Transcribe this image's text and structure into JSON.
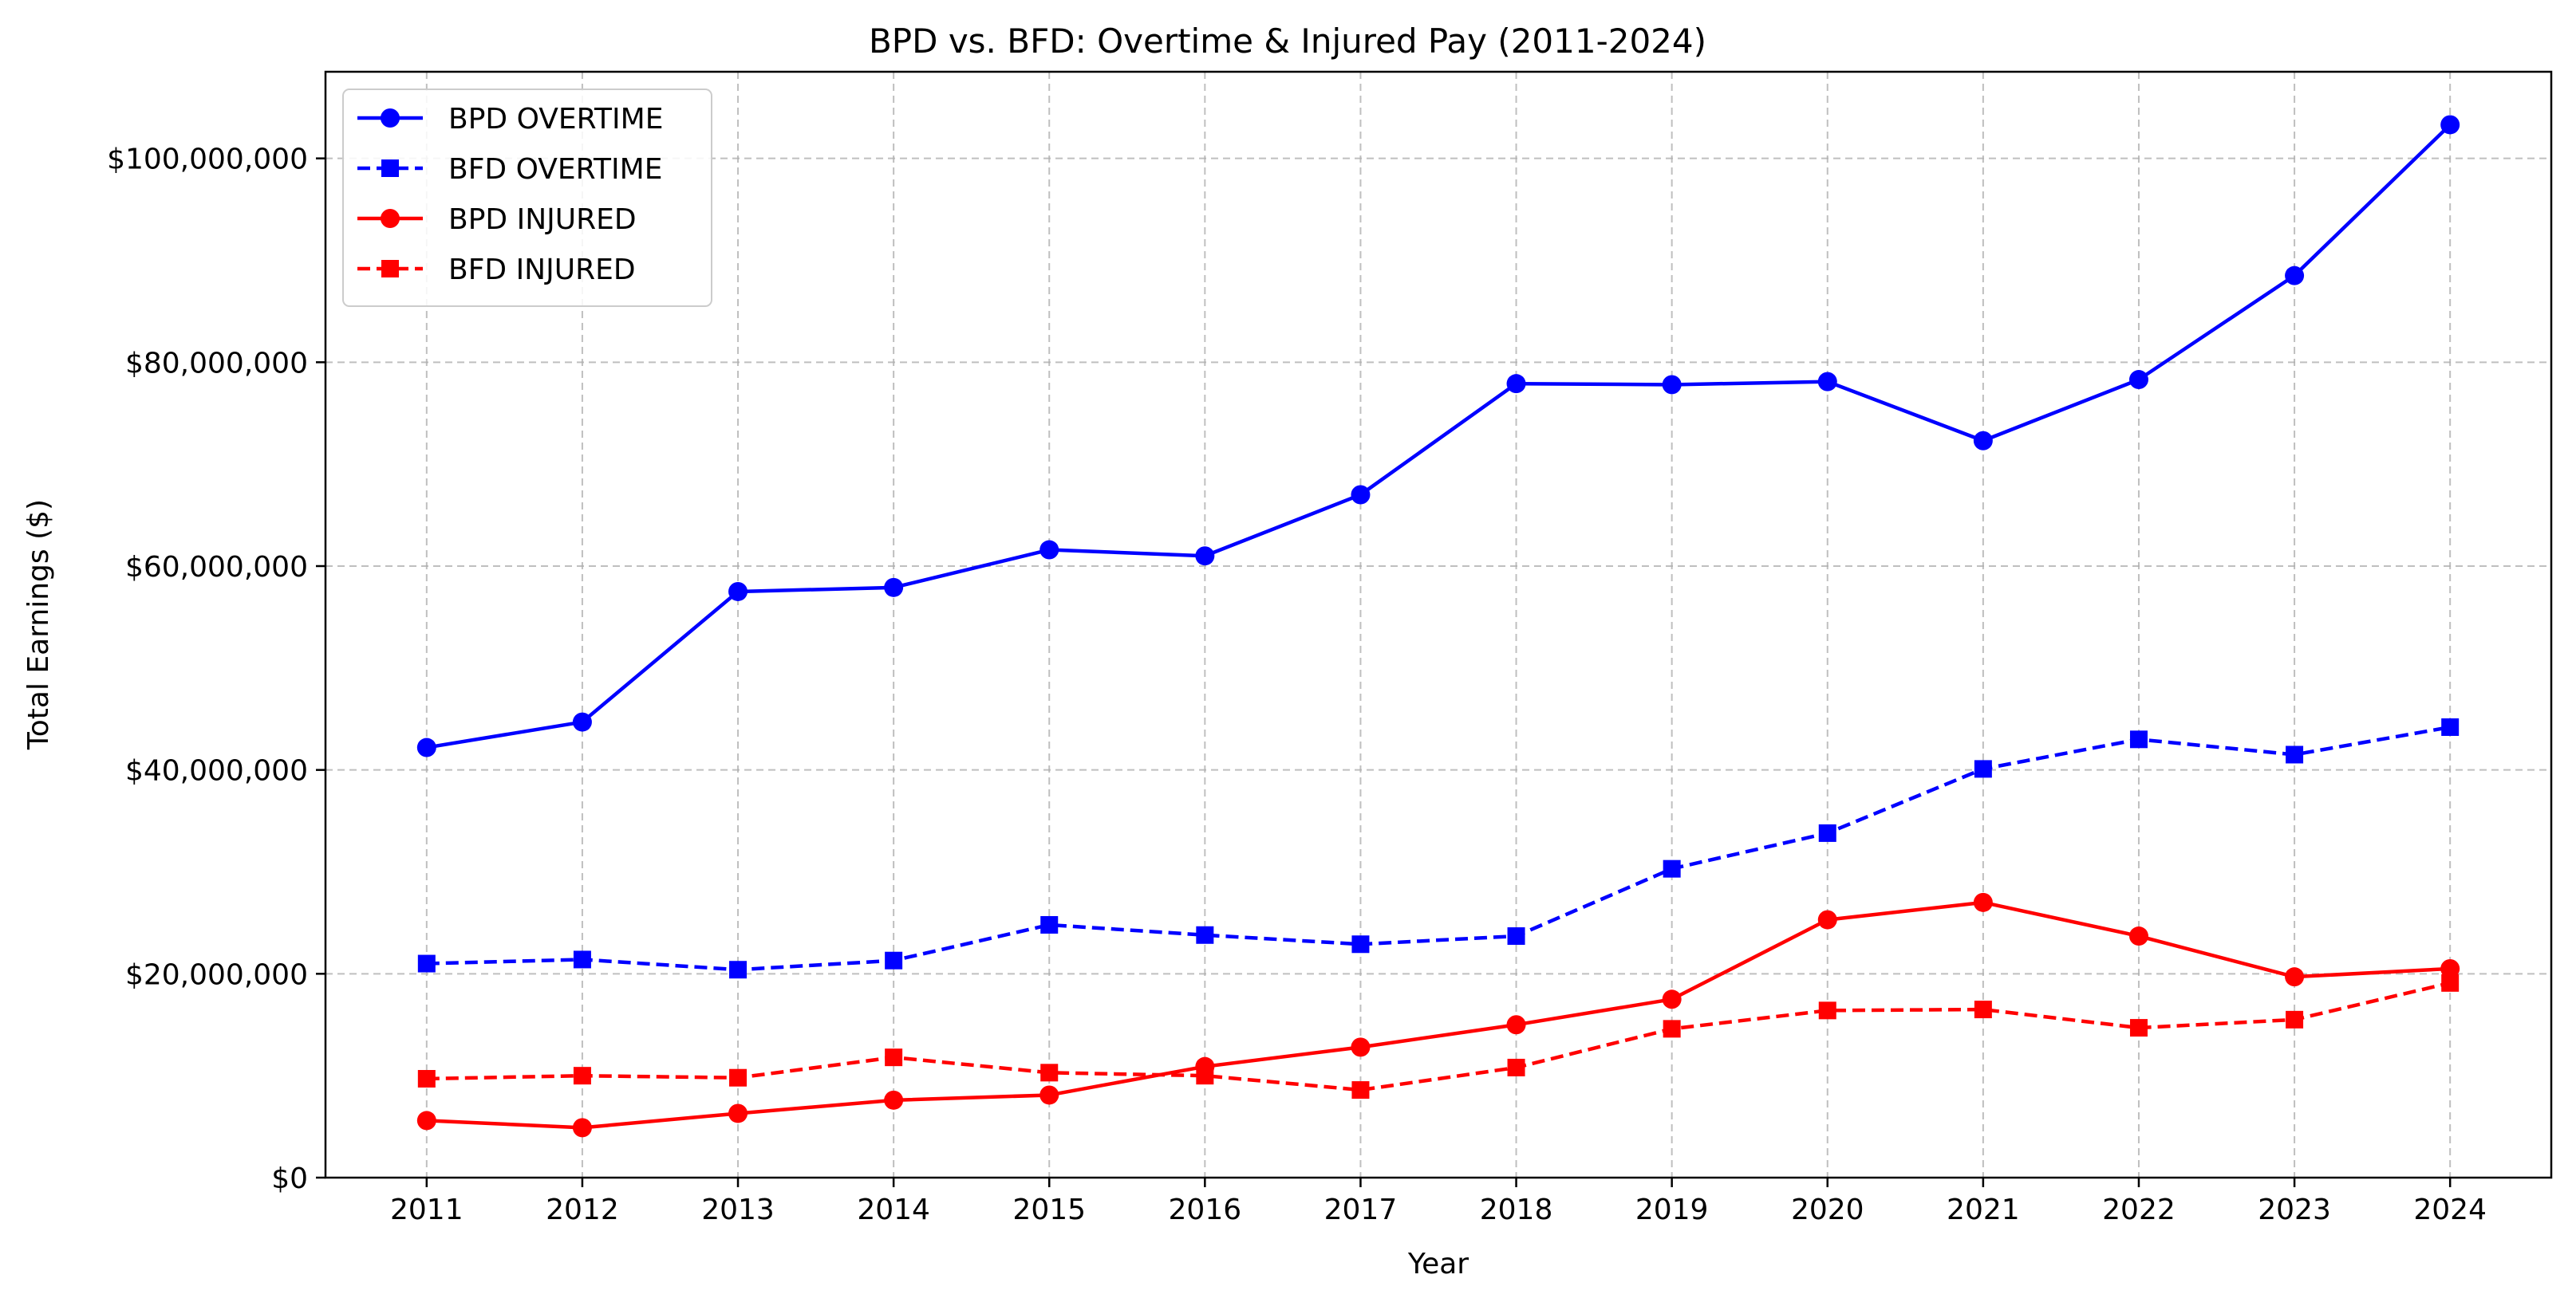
{
  "chart_data": {
    "type": "line",
    "title": "BPD vs. BFD: Overtime & Injured Pay (2011-2024)",
    "xlabel": "Year",
    "ylabel": "Total Earnings ($)",
    "x": [
      2011,
      2012,
      2013,
      2014,
      2015,
      2016,
      2017,
      2018,
      2019,
      2020,
      2021,
      2022,
      2023,
      2024
    ],
    "xlim": [
      2010.35,
      2024.65
    ],
    "ylim": [
      0,
      108500000
    ],
    "y_ticks": [
      0,
      20000000,
      40000000,
      60000000,
      80000000,
      100000000
    ],
    "y_tick_labels": [
      "$0",
      "$20,000,000",
      "$40,000,000",
      "$60,000,000",
      "$80,000,000",
      "$100,000,000"
    ],
    "grid": true,
    "legend_position": "top-left",
    "series": [
      {
        "name": "BPD OVERTIME",
        "color": "#0000ff",
        "line_style": "solid",
        "marker": "circle",
        "values": [
          42200000,
          44700000,
          57500000,
          57900000,
          61600000,
          61000000,
          67000000,
          77900000,
          77800000,
          78100000,
          72300000,
          78300000,
          88500000,
          103300000
        ]
      },
      {
        "name": "BFD OVERTIME",
        "color": "#0000ff",
        "line_style": "dashed",
        "marker": "square",
        "values": [
          21000000,
          21400000,
          20400000,
          21300000,
          24800000,
          23800000,
          22900000,
          23700000,
          30300000,
          33800000,
          40100000,
          43000000,
          41500000,
          44200000
        ]
      },
      {
        "name": "BPD INJURED",
        "color": "#ff0000",
        "line_style": "solid",
        "marker": "circle",
        "values": [
          5600000,
          4900000,
          6300000,
          7600000,
          8100000,
          10900000,
          12800000,
          15000000,
          17500000,
          25300000,
          27000000,
          23700000,
          19700000,
          20500000
        ]
      },
      {
        "name": "BFD INJURED",
        "color": "#ff0000",
        "line_style": "dashed",
        "marker": "square",
        "values": [
          9700000,
          10000000,
          9800000,
          11800000,
          10300000,
          10000000,
          8600000,
          10800000,
          14600000,
          16400000,
          16500000,
          14700000,
          15500000,
          19100000
        ]
      }
    ]
  }
}
